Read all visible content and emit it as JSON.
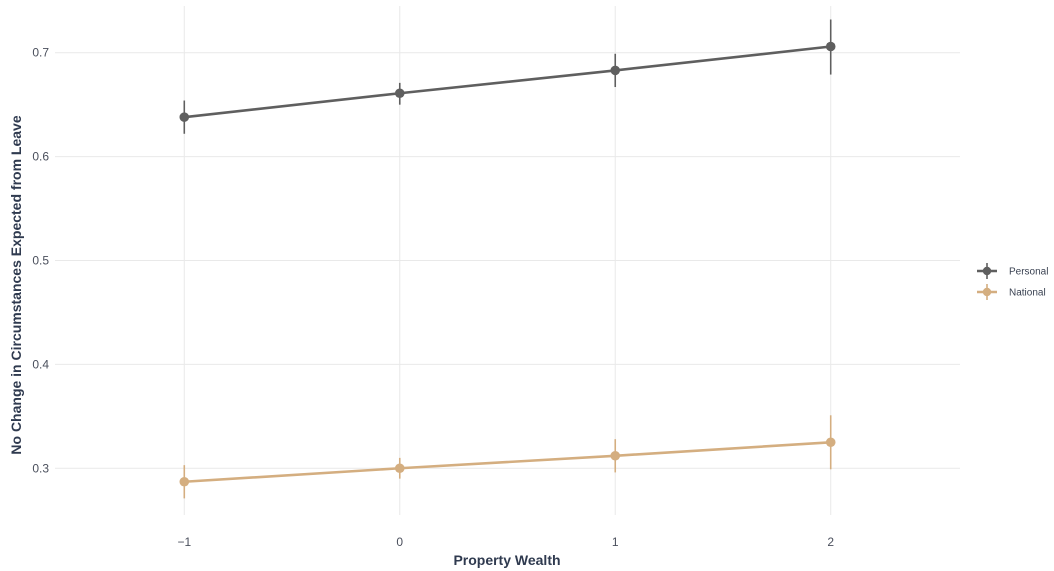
{
  "chart_data": {
    "type": "line",
    "xlabel": "Property Wealth",
    "ylabel": "No Change in Circumstances Expected from Leave",
    "x": [
      -1,
      0,
      1,
      2
    ],
    "x_tick_labels": [
      "−1",
      "0",
      "1",
      "2"
    ],
    "xlim": [
      -1.6,
      2.6
    ],
    "y_ticks": [
      0.3,
      0.4,
      0.5,
      0.6,
      0.7
    ],
    "y_tick_labels": [
      "0.3",
      "0.4",
      "0.5",
      "0.6",
      "0.7"
    ],
    "ylim": [
      0.255,
      0.745
    ],
    "grid": true,
    "legend_position": "right",
    "series": [
      {
        "name": "Personal",
        "color": "#5f5f5f",
        "values": [
          0.638,
          0.661,
          0.683,
          0.706
        ],
        "lower": [
          0.622,
          0.65,
          0.667,
          0.679
        ],
        "upper": [
          0.654,
          0.671,
          0.699,
          0.732
        ]
      },
      {
        "name": "National",
        "color": "#d4ae80",
        "values": [
          0.287,
          0.3,
          0.312,
          0.325
        ],
        "lower": [
          0.271,
          0.29,
          0.296,
          0.299
        ],
        "upper": [
          0.303,
          0.31,
          0.328,
          0.351
        ]
      }
    ]
  }
}
